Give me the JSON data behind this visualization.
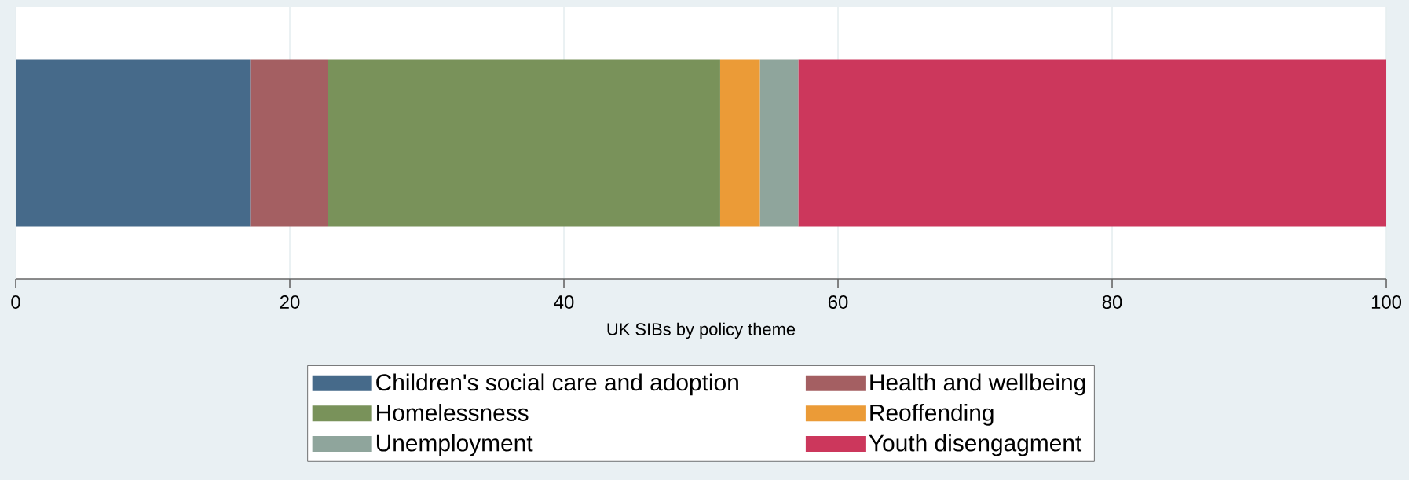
{
  "chart_data": {
    "type": "bar",
    "orientation": "horizontal",
    "stacked": true,
    "categories": [
      null
    ],
    "xlabel": "UK SIBs by policy theme",
    "series": [
      {
        "name": "Children's social care and adoption",
        "color": "#466a8a",
        "values": [
          17.1
        ]
      },
      {
        "name": "Health and wellbeing",
        "color": "#a45f62",
        "values": [
          5.7
        ]
      },
      {
        "name": "Homelessness",
        "color": "#79925a",
        "values": [
          28.6
        ]
      },
      {
        "name": "Reoffending",
        "color": "#eb9b37",
        "values": [
          2.9
        ]
      },
      {
        "name": "Unemployment",
        "color": "#8fa59c",
        "values": [
          2.8
        ]
      },
      {
        "name": "Youth disengagment",
        "color": "#cc375c",
        "values": [
          42.9
        ]
      }
    ],
    "xlim": [
      0,
      100
    ],
    "xticks": [
      0,
      20,
      40,
      60,
      80,
      100
    ],
    "grid": "x",
    "legend": "bottom"
  }
}
